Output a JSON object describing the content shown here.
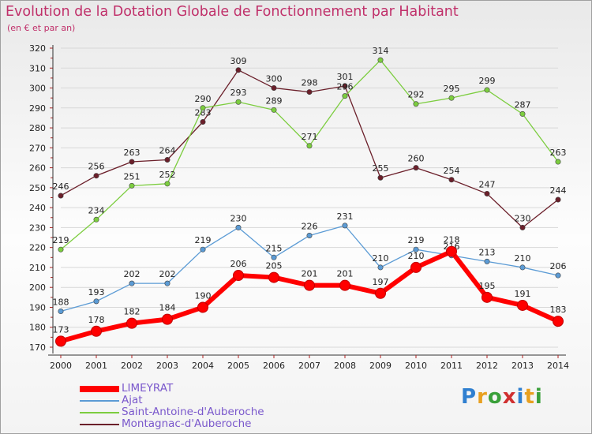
{
  "header": {
    "title": "Evolution de la Dotation Globale de Fonctionnement par Habitant",
    "subtitle": "(en € et par an)"
  },
  "logo": {
    "text": "Proxiti"
  },
  "chart_data": {
    "type": "line",
    "title": "Evolution de la Dotation Globale de Fonctionnement par Habitant",
    "subtitle": "(en € et par an)",
    "x": [
      "2000",
      "2001",
      "2002",
      "2003",
      "2004",
      "2005",
      "2006",
      "2007",
      "2008",
      "2009",
      "2010",
      "2011",
      "2012",
      "2013",
      "2014"
    ],
    "ylim": [
      170,
      320
    ],
    "yticks": [
      170,
      180,
      190,
      200,
      210,
      220,
      230,
      240,
      250,
      260,
      270,
      280,
      290,
      300,
      310,
      320
    ],
    "grid": true,
    "legend_position": "bottom-left",
    "series": [
      {
        "name": "LIMEYRAT",
        "color": "#ff0000",
        "values": [
          173,
          178,
          182,
          184,
          190,
          206,
          205,
          201,
          201,
          197,
          210,
          218,
          195,
          191,
          183
        ],
        "labels": [
          "173",
          "178",
          "182",
          "184",
          "190",
          "206",
          "205",
          "201",
          "201",
          "197",
          "210",
          "218",
          "195",
          "191",
          "183"
        ]
      },
      {
        "name": "Ajat",
        "color": "#5b9bd5",
        "values": [
          188,
          193,
          202,
          202,
          219,
          230,
          215,
          226,
          231,
          210,
          219,
          216,
          213,
          210,
          206
        ],
        "labels": [
          "188",
          "193",
          "202",
          "202",
          "219",
          "230",
          "215",
          "226",
          "231",
          "210",
          "219",
          "216",
          "213",
          "210",
          "206"
        ]
      },
      {
        "name": "Saint-Antoine-d'Auberoche",
        "color": "#7ccd3f",
        "values": [
          219,
          234,
          251,
          252,
          290,
          293,
          289,
          271,
          296,
          314,
          292,
          295,
          299,
          287,
          263
        ],
        "labels": [
          "219",
          "234",
          "251",
          "252",
          "290",
          "293",
          "289",
          "271",
          "296",
          "314",
          "292",
          "295",
          "299",
          "287",
          "263"
        ]
      },
      {
        "name": "Montagnac-d'Auberoche",
        "color": "#6b1f2a",
        "values": [
          246,
          256,
          263,
          264,
          283,
          309,
          300,
          298,
          301,
          255,
          260,
          254,
          247,
          230,
          244
        ],
        "labels": [
          "246",
          "256",
          "263",
          "264",
          "283",
          "309",
          "300",
          "298",
          "301",
          "255",
          "260",
          "254",
          "247",
          "230",
          "244"
        ]
      }
    ]
  },
  "colors": {
    "title": "#c0306a",
    "legend_text": "#7a58cc",
    "axis": "#333333",
    "grid": "#d8d8d8"
  }
}
